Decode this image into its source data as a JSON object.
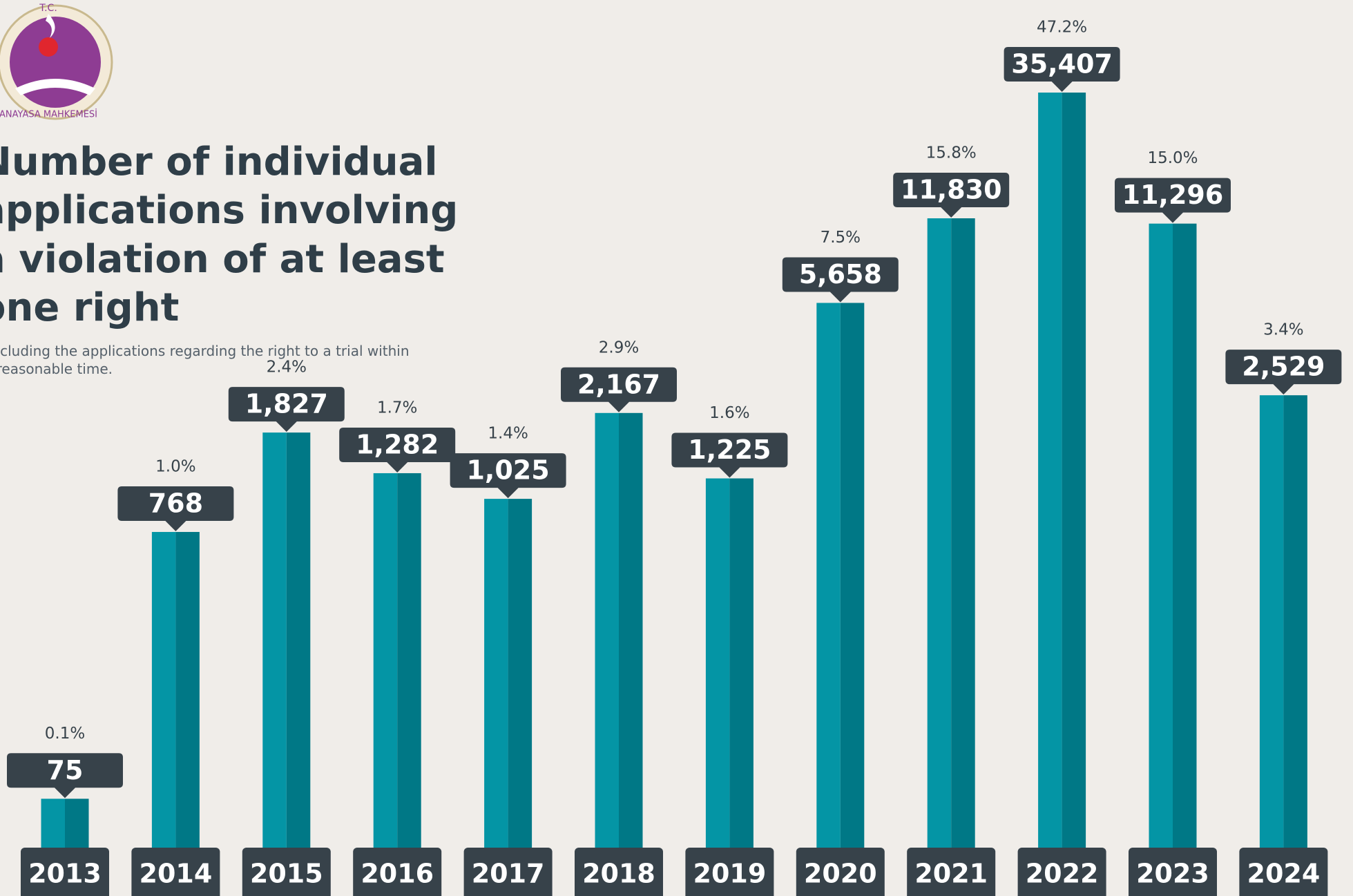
{
  "logo": {
    "top": "T.C.",
    "bottom": "ANAYASA MAHKEMESİ"
  },
  "chart_data": {
    "type": "bar",
    "title": [
      "Number of individual",
      "applications involving",
      "a violation of at least",
      "one right"
    ],
    "subtitle": [
      "Excluding the applications regarding the right to a trial within",
      "a reasonable time."
    ],
    "categories": [
      "2013",
      "2014",
      "2015",
      "2016",
      "2017",
      "2018",
      "2019",
      "2020",
      "2021",
      "2022",
      "2023",
      "2024"
    ],
    "values": [
      75,
      768,
      1827,
      1282,
      1025,
      2167,
      1225,
      5658,
      11830,
      35407,
      11296,
      2529
    ],
    "value_labels": [
      "75",
      "768",
      "1,827",
      "1,282",
      "1,025",
      "2,167",
      "1,225",
      "5,658",
      "11,830",
      "35,407",
      "11,296",
      "2,529"
    ],
    "shares": {
      "values": [
        0.1,
        1.0,
        2.4,
        1.7,
        1.4,
        2.9,
        1.6,
        7.5,
        15.8,
        47.2,
        15.0,
        3.4
      ],
      "value_labels": [
        "0.1%",
        "1.0%",
        "2.4%",
        "1.7%",
        "1.4%",
        "2.9%",
        "1.6%",
        "7.5%",
        "15.8%",
        "47.2%",
        "15.0%",
        "3.4%"
      ]
    },
    "colors": [
      "#0495a5",
      "#007886"
    ],
    "label_color": "#37424a"
  }
}
